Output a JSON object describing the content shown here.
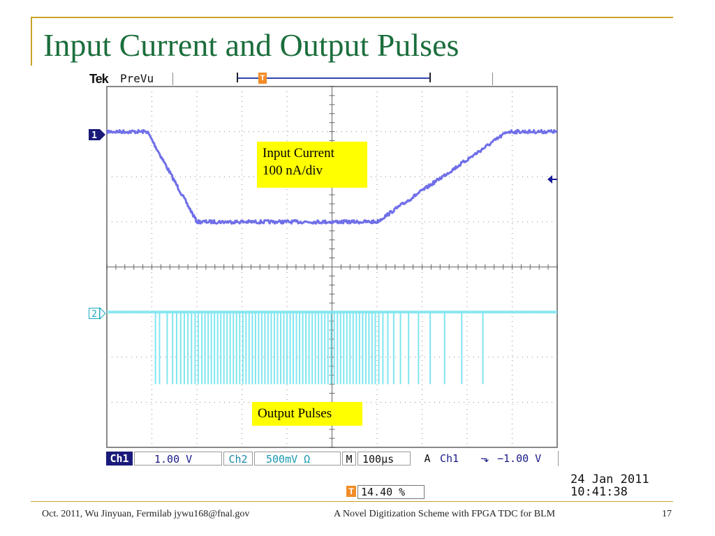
{
  "slide": {
    "title": "Input Current and Output Pulses",
    "footer_left": "Oct. 2011, Wu Jinyuan, Fermilab jywu168@fnal.gov",
    "footer_center": "A Novel Digitization Scheme with FPGA TDC for BLM",
    "page_number": "17"
  },
  "scope": {
    "brand": "Tek",
    "mode": "PreVu",
    "trigger_icon": "T",
    "ch1_marker": "1",
    "ch2_marker": "2",
    "annotations": {
      "input_line1": "Input Current",
      "input_line2": "100 nA/div",
      "output": "Output Pulses"
    },
    "status": {
      "ch1_label": "Ch1",
      "ch1_scale": "1.00 V",
      "ch2_label": "Ch2",
      "ch2_scale": "500mV Ω",
      "m_label": "M",
      "timebase": "100µs",
      "a_label": "A",
      "trigger_source": "Ch1",
      "trigger_slope": "⬎",
      "trigger_level": "−1.00 V"
    },
    "trigger_position": "14.40 %",
    "date": "24 Jan  2011",
    "time": "10:41:38",
    "colors": {
      "ch1": "#6f6fe8",
      "ch2": "#7fe6f0",
      "trigger": "#f28c28",
      "label_bg": "#ffff00"
    }
  },
  "chart_data": {
    "type": "line",
    "title": "",
    "xlabel": "",
    "ylabel": "",
    "grid": true,
    "divisions": {
      "x": 10,
      "y": 8
    },
    "series": [
      {
        "channel": "1",
        "unit": "divisions",
        "x": [
          0,
          0.9,
          2.0,
          6.0,
          8.9,
          10
        ],
        "y": [
          3.0,
          3.0,
          1.0,
          1.0,
          3.0,
          3.0
        ]
      },
      {
        "channel": "2",
        "unit": "divisions",
        "baseline": -1.0,
        "pulse_depth": -2.6,
        "pulse_x": [
          1.08,
          1.17,
          1.34,
          1.46,
          1.55,
          1.64,
          1.72,
          1.8,
          1.88,
          1.96,
          2.03,
          2.11,
          2.18,
          2.25,
          2.32,
          2.39,
          2.46,
          2.53,
          2.6,
          2.67,
          2.74,
          2.81,
          2.88,
          2.95,
          3.02,
          3.09,
          3.16,
          3.23,
          3.3,
          3.37,
          3.44,
          3.51,
          3.58,
          3.65,
          3.72,
          3.79,
          3.86,
          3.93,
          4.0,
          4.07,
          4.14,
          4.21,
          4.28,
          4.35,
          4.42,
          4.49,
          4.56,
          4.63,
          4.7,
          4.77,
          4.84,
          4.91,
          4.98,
          5.05,
          5.12,
          5.19,
          5.26,
          5.33,
          5.4,
          5.47,
          5.54,
          5.61,
          5.68,
          5.75,
          5.82,
          5.89,
          5.96,
          6.04,
          6.13,
          6.24,
          6.37,
          6.52,
          6.7,
          6.92,
          7.18,
          7.5,
          7.88,
          8.35
        ]
      }
    ]
  }
}
